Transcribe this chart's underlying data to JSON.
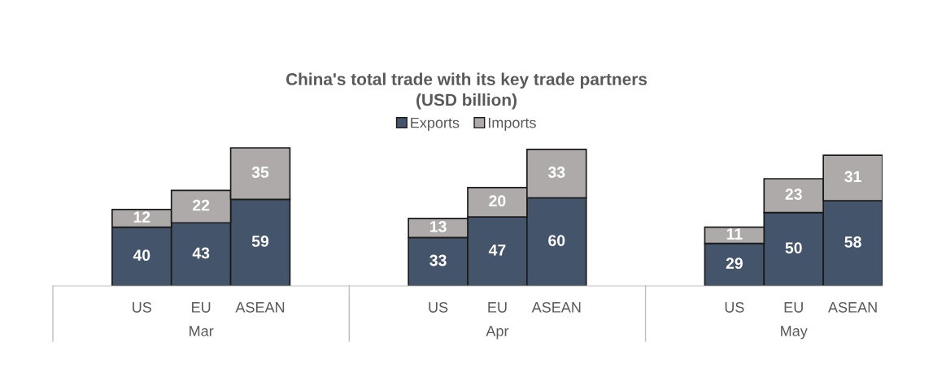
{
  "chart_data": {
    "type": "bar",
    "title": "China's total trade with its key trade partners\n(USD billion)",
    "categories": [
      null,
      "US",
      "EU",
      "ASEAN",
      null,
      null,
      "US",
      "EU",
      "ASEAN",
      null,
      null,
      "US",
      "EU",
      "ASEAN"
    ],
    "annotations": [
      "Mar",
      "Apr",
      "May"
    ],
    "stacked": true,
    "data_labels": true,
    "legend": "top",
    "series": [
      {
        "name": "Exports",
        "color": "#44546a",
        "values": [
          null,
          40,
          43,
          59,
          null,
          null,
          33,
          47,
          60,
          null,
          null,
          29,
          50,
          58
        ]
      },
      {
        "name": "Imports",
        "color": "#aeaaaa",
        "values": [
          null,
          12,
          22,
          35,
          null,
          null,
          13,
          20,
          33,
          null,
          null,
          11,
          23,
          31
        ]
      }
    ]
  }
}
